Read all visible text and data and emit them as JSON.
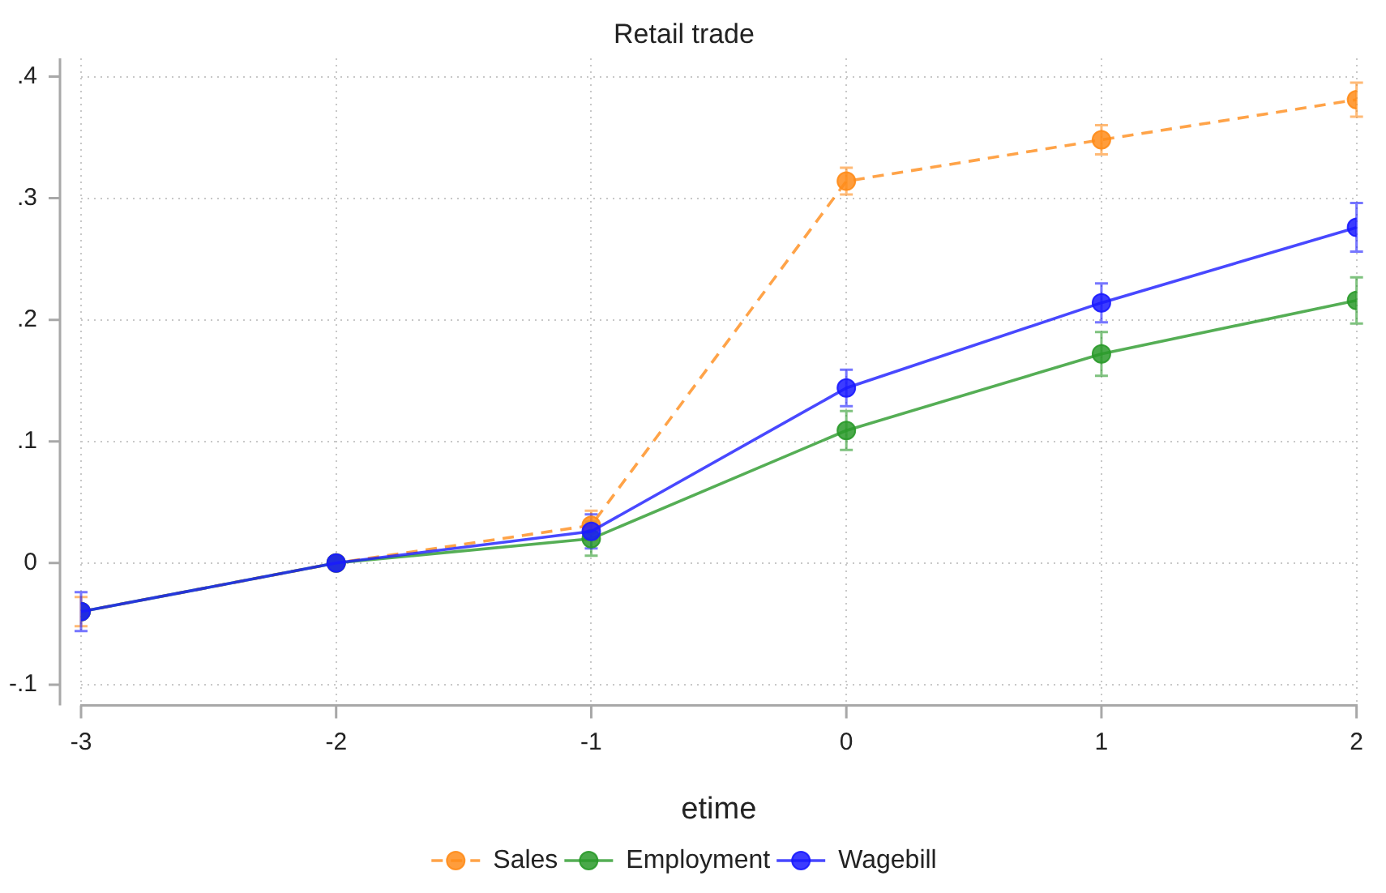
{
  "chart_data": {
    "type": "line",
    "title": "Retail trade",
    "xlabel": "etime",
    "x": [
      -3,
      -2,
      -1,
      0,
      1,
      2
    ],
    "series": [
      {
        "name": "Sales",
        "color": "#ff8c1a",
        "line_style": "dashed",
        "values": [
          -0.04,
          0,
          0.031,
          0.314,
          0.348,
          0.381
        ],
        "errors": [
          0.012,
          null,
          0.012,
          0.011,
          0.012,
          0.014
        ]
      },
      {
        "name": "Employment",
        "color": "#2a9a2a",
        "values": [
          -0.04,
          0,
          0.02,
          0.109,
          0.172,
          0.216
        ],
        "errors": [
          null,
          null,
          0.014,
          0.016,
          0.018,
          0.019
        ]
      },
      {
        "name": "Wagebill",
        "color": "#1a1aff",
        "values": [
          -0.04,
          0,
          0.026,
          0.144,
          0.214,
          0.276
        ],
        "errors": [
          0.016,
          null,
          0.014,
          0.015,
          0.016,
          0.02
        ]
      }
    ],
    "xlim": [
      -3,
      2
    ],
    "xticks": [
      -3,
      -2,
      -1,
      0,
      1,
      2
    ],
    "ylim": [
      -0.117,
      0.415
    ],
    "yticks": [
      {
        "value": -0.1,
        "label": "-.1"
      },
      0,
      {
        "value": 0.1,
        "label": ".1"
      },
      {
        "value": 0.2,
        "label": ".2"
      },
      {
        "value": 0.3,
        "label": ".3"
      },
      {
        "value": 0.4,
        "label": ".4"
      }
    ],
    "grid": true,
    "legend": "bottom",
    "marker": "circle",
    "line_style": "solid"
  }
}
